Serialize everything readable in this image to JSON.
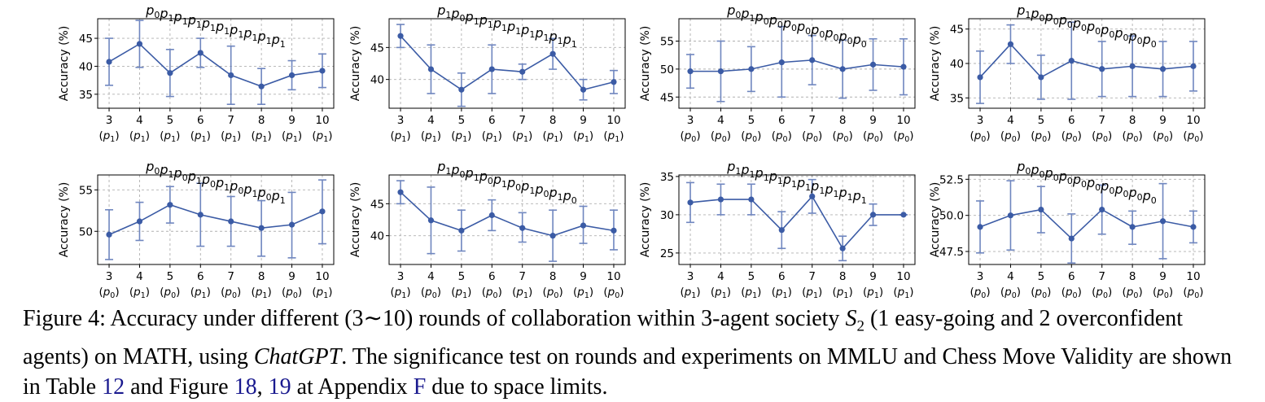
{
  "chart_data": [
    {
      "type": "line",
      "title": "p0p1p1p1p1p1p1p1p1p1",
      "title_seq": [
        "0",
        "1",
        "1",
        "1",
        "1",
        "1",
        "1",
        "1",
        "1",
        "1"
      ],
      "ylabel": "Accuracy (%)",
      "ylim": [
        32.5,
        48.5
      ],
      "yticks": [
        35,
        40,
        45
      ],
      "x": [
        3,
        4,
        5,
        6,
        7,
        8,
        9,
        10
      ],
      "x_sublabels": [
        "1",
        "1",
        "1",
        "1",
        "1",
        "1",
        "1",
        "1"
      ],
      "values": [
        40.8,
        44.0,
        38.8,
        42.4,
        38.4,
        36.4,
        38.4,
        39.2
      ],
      "err_low": [
        36.6,
        39.8,
        34.6,
        39.8,
        33.2,
        33.2,
        35.8,
        36.2
      ],
      "err_high": [
        45.0,
        48.2,
        43.0,
        45.0,
        43.6,
        39.6,
        41.0,
        42.2
      ]
    },
    {
      "type": "line",
      "title": "p1p0p1p1p1p1p1p1p1p1",
      "title_seq": [
        "1",
        "0",
        "1",
        "1",
        "1",
        "1",
        "1",
        "1",
        "1",
        "1"
      ],
      "ylabel": "Accuracy (%)",
      "ylim": [
        35.5,
        49.5
      ],
      "yticks": [
        40,
        45
      ],
      "x": [
        3,
        4,
        5,
        6,
        7,
        8,
        9,
        10
      ],
      "x_sublabels": [
        "1",
        "1",
        "1",
        "1",
        "1",
        "1",
        "1",
        "1"
      ],
      "values": [
        46.8,
        41.6,
        38.4,
        41.6,
        41.2,
        44.0,
        38.4,
        39.6
      ],
      "err_low": [
        45.0,
        37.8,
        35.8,
        37.8,
        40.0,
        41.6,
        36.8,
        37.8
      ],
      "err_high": [
        48.6,
        45.4,
        41.0,
        45.4,
        42.4,
        46.4,
        40.0,
        41.4
      ]
    },
    {
      "type": "line",
      "title": "p0p1p0p0p0p0p0p0p0p0",
      "title_seq": [
        "0",
        "1",
        "0",
        "0",
        "0",
        "0",
        "0",
        "0",
        "0",
        "0"
      ],
      "ylabel": "Accuracy (%)",
      "ylim": [
        43,
        59
      ],
      "yticks": [
        45,
        50,
        55
      ],
      "x": [
        3,
        4,
        5,
        6,
        7,
        8,
        9,
        10
      ],
      "x_sublabels": [
        "0",
        "0",
        "0",
        "0",
        "0",
        "0",
        "0",
        "0"
      ],
      "values": [
        49.6,
        49.6,
        50.0,
        51.2,
        51.6,
        50.0,
        50.8,
        50.4
      ],
      "err_low": [
        46.6,
        44.2,
        46.0,
        45.0,
        47.2,
        44.8,
        46.2,
        45.4
      ],
      "err_high": [
        52.6,
        55.0,
        54.0,
        57.6,
        56.0,
        55.2,
        55.4,
        55.4
      ]
    },
    {
      "type": "line",
      "title": "p1p0p0p0p0p0p0p0p0p0",
      "title_seq": [
        "1",
        "0",
        "0",
        "0",
        "0",
        "0",
        "0",
        "0",
        "0",
        "0"
      ],
      "ylabel": "Accuracy (%)",
      "ylim": [
        33.5,
        46.5
      ],
      "yticks": [
        35,
        40,
        45
      ],
      "x": [
        3,
        4,
        5,
        6,
        7,
        8,
        9,
        10
      ],
      "x_sublabels": [
        "0",
        "0",
        "0",
        "0",
        "0",
        "0",
        "0",
        "0"
      ],
      "values": [
        38.0,
        42.8,
        38.0,
        40.4,
        39.2,
        39.6,
        39.2,
        39.6
      ],
      "err_low": [
        34.2,
        40.0,
        34.8,
        34.8,
        35.2,
        35.2,
        35.2,
        36.0
      ],
      "err_high": [
        41.8,
        45.6,
        41.2,
        46.0,
        43.2,
        44.0,
        43.2,
        43.2
      ]
    },
    {
      "type": "line",
      "title": "p0p1p0p1p0p1p0p1p0p1",
      "title_seq": [
        "0",
        "1",
        "0",
        "1",
        "0",
        "1",
        "0",
        "1",
        "0",
        "1"
      ],
      "ylabel": "Accuracy (%)",
      "ylim": [
        46,
        56.8
      ],
      "yticks": [
        50,
        55
      ],
      "x": [
        3,
        4,
        5,
        6,
        7,
        8,
        9,
        10
      ],
      "x_sublabels": [
        "0",
        "1",
        "0",
        "1",
        "0",
        "1",
        "0",
        "1"
      ],
      "values": [
        49.6,
        51.2,
        53.2,
        52.0,
        51.2,
        50.4,
        50.8,
        52.4
      ],
      "err_low": [
        46.6,
        48.9,
        51.0,
        48.2,
        48.2,
        47.0,
        46.8,
        48.5
      ],
      "err_high": [
        52.6,
        53.5,
        55.4,
        55.8,
        54.2,
        53.7,
        54.7,
        56.2
      ]
    },
    {
      "type": "line",
      "title": "p1p0p1p0p1p0p1p0p1p0",
      "title_seq": [
        "1",
        "0",
        "1",
        "0",
        "1",
        "0",
        "1",
        "0",
        "1",
        "0"
      ],
      "ylabel": "Accuracy (%)",
      "ylim": [
        35.5,
        49.5
      ],
      "yticks": [
        40,
        45
      ],
      "x": [
        3,
        4,
        5,
        6,
        7,
        8,
        9,
        10
      ],
      "x_sublabels": [
        "1",
        "0",
        "1",
        "0",
        "1",
        "0",
        "1",
        "0"
      ],
      "values": [
        46.8,
        42.4,
        40.8,
        43.2,
        41.2,
        40.0,
        41.6,
        40.8
      ],
      "err_low": [
        45.0,
        37.2,
        37.6,
        40.8,
        39.0,
        36.0,
        38.8,
        37.8
      ],
      "err_high": [
        48.6,
        47.6,
        44.0,
        45.6,
        43.6,
        44.0,
        44.6,
        44.0
      ]
    },
    {
      "type": "line",
      "title": "p1p1p1p1p1p1p1p1p1p1",
      "title_seq": [
        "1",
        "1",
        "1",
        "1",
        "1",
        "1",
        "1",
        "1",
        "1",
        "1"
      ],
      "ylabel": "Accuracy (%)",
      "ylim": [
        23.5,
        35.2
      ],
      "yticks": [
        25,
        30,
        35
      ],
      "x": [
        3,
        4,
        5,
        6,
        7,
        8,
        9,
        10
      ],
      "x_sublabels": [
        "1",
        "1",
        "1",
        "1",
        "1",
        "1",
        "1",
        "1"
      ],
      "values": [
        31.6,
        32.0,
        32.0,
        28.0,
        32.4,
        25.6,
        30.0,
        30.0
      ],
      "err_low": [
        29.0,
        30.0,
        30.0,
        25.6,
        30.2,
        24.0,
        28.6,
        30.0
      ],
      "err_high": [
        34.2,
        34.0,
        34.0,
        30.4,
        34.6,
        27.2,
        31.4,
        30.0
      ]
    },
    {
      "type": "line",
      "title": "p0p0p0p0p0p0p0p0p0p0",
      "title_seq": [
        "0",
        "0",
        "0",
        "0",
        "0",
        "0",
        "0",
        "0",
        "0",
        "0"
      ],
      "ylabel": "Accuracy (%)",
      "ylim": [
        46.6,
        52.8
      ],
      "yticks": [
        47.5,
        50.0,
        52.5
      ],
      "ytick_decimals": 1,
      "x": [
        3,
        4,
        5,
        6,
        7,
        8,
        9,
        10
      ],
      "x_sublabels": [
        "0",
        "0",
        "0",
        "0",
        "0",
        "0",
        "0",
        "0"
      ],
      "values": [
        49.2,
        50.0,
        50.4,
        48.4,
        50.4,
        49.2,
        49.6,
        49.2
      ],
      "err_low": [
        47.4,
        47.6,
        48.8,
        46.7,
        48.7,
        48.0,
        47.0,
        48.1
      ],
      "err_high": [
        51.0,
        52.4,
        52.0,
        50.1,
        52.1,
        50.3,
        52.2,
        50.3
      ]
    }
  ],
  "caption": {
    "part1": "Figure 4: Accuracy under different (3∼10) rounds of collaboration within 3-agent society ",
    "society_symbol": "S",
    "society_sub": "2",
    "part2": " (1 easy-going and 2 overconfident agents) on MATH, using ",
    "model": "ChatGPT",
    "part3": ". The significance test on rounds and experiments on MMLU and Chess Move Validity are shown in Table ",
    "table_ref": "12",
    "part4": " and Figure ",
    "fig_ref1": "18",
    "sep": ", ",
    "fig_ref2": "19",
    "part5": " at Appendix ",
    "appendix_ref": "F",
    "part6": " due to space limits."
  },
  "colors": {
    "line": "#3b5ba5",
    "errorbar": "#6f86bf",
    "grid": "#b0b0b0",
    "axis": "#000000"
  }
}
